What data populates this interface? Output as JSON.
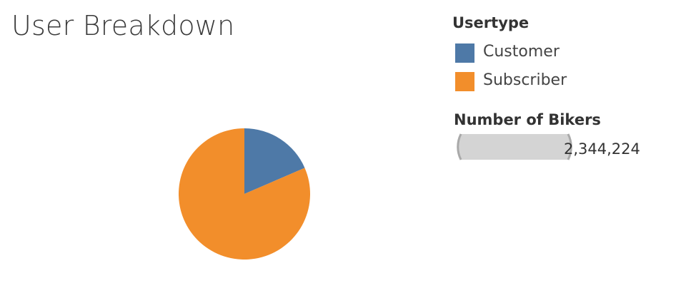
{
  "title": "User Breakdown",
  "legend": {
    "title": "Usertype",
    "items": [
      {
        "label": "Customer",
        "color": "#4e79a7"
      },
      {
        "label": "Subscriber",
        "color": "#f28e2b"
      }
    ]
  },
  "size_legend": {
    "title": "Number of Bikers",
    "value": "2,344,224"
  },
  "chart_data": {
    "type": "pie",
    "title": "User Breakdown",
    "categories": [
      "Customer",
      "Subscriber"
    ],
    "values": [
      0.185,
      0.815
    ],
    "colors": [
      "#4e79a7",
      "#f28e2b"
    ],
    "legend": "top-right"
  }
}
